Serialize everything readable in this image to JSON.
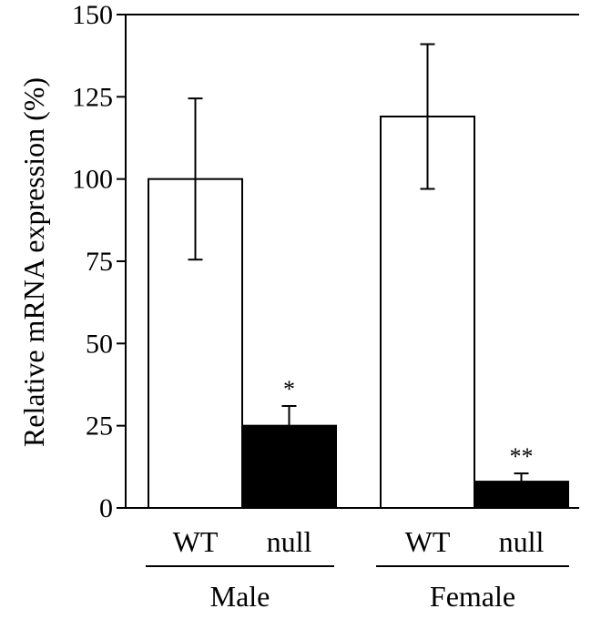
{
  "chart_data": {
    "type": "bar",
    "title": "",
    "xlabel": "",
    "ylabel": "Relative mRNA expression (%)",
    "ylim": [
      0,
      150
    ],
    "yticks": [
      0,
      25,
      50,
      75,
      100,
      125,
      150
    ],
    "grid": false,
    "legend": "none",
    "groups": [
      {
        "label": "Male",
        "bars": [
          {
            "category": "WT",
            "value": 100,
            "error": 24.5,
            "fill": "#ffffff",
            "significance": ""
          },
          {
            "category": "null",
            "value": 25,
            "error": 6,
            "fill": "#000000",
            "significance": "*"
          }
        ]
      },
      {
        "label": "Female",
        "bars": [
          {
            "category": "WT",
            "value": 119,
            "error": 22,
            "fill": "#ffffff",
            "significance": ""
          },
          {
            "category": "null",
            "value": 8,
            "error": 2.5,
            "fill": "#000000",
            "significance": "**"
          }
        ]
      }
    ]
  }
}
